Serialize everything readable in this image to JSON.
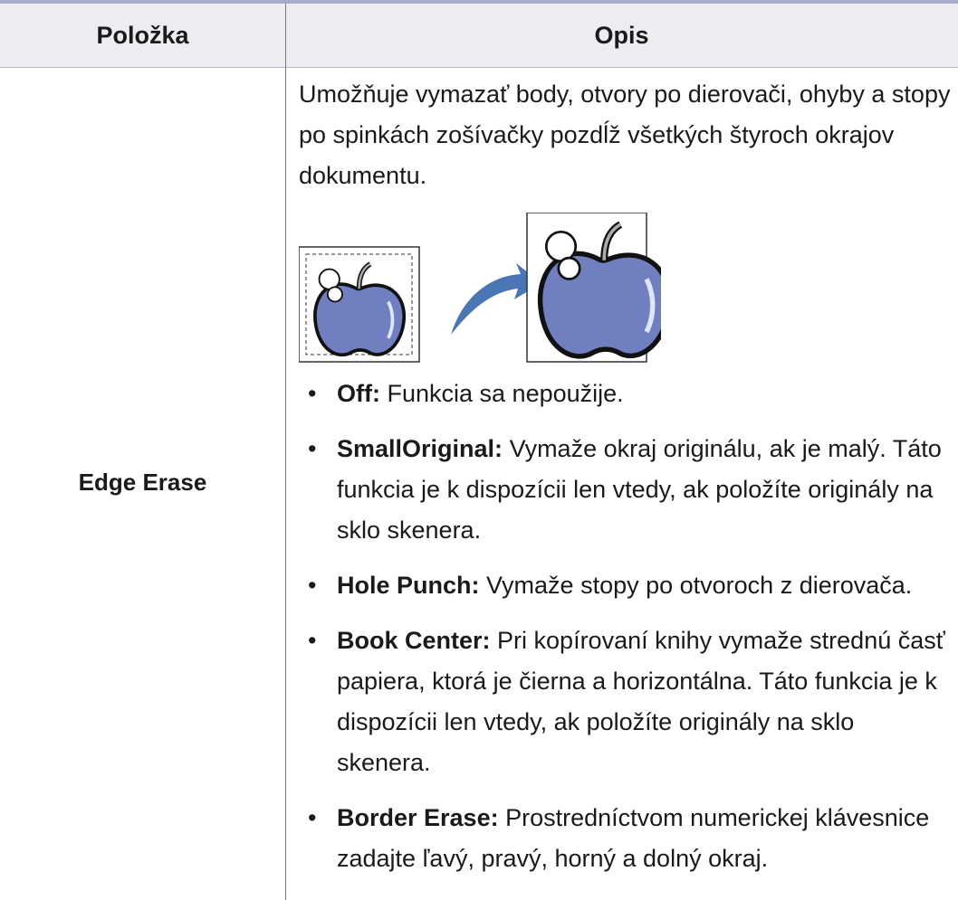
{
  "table": {
    "headers": [
      "Položka",
      "Opis"
    ],
    "rows": [
      {
        "item": "Edge Erase",
        "description": "Umožňuje vymazať body, otvory po dierovači, ohyby a stopy po spinkách zošívačky pozdĺž všetkých štyroch okrajov dokumentu.",
        "options": [
          {
            "term": "Off:",
            "text": "Funkcia sa nepoužije."
          },
          {
            "term": "SmallOriginal:",
            "text": "Vymaže okraj originálu, ak je malý. Táto funkcia je k dispozícii len vtedy, ak položíte originály na sklo skenera."
          },
          {
            "term": "Hole Punch:",
            "text": "Vymaže stopy po otvoroch z dierovača."
          },
          {
            "term": "Book Center:",
            "text": "Pri kopírovaní knihy vymaže strednú časť papiera, ktorá je čierna a horizontálna. Táto funkcia je k dispozícii len vtedy, ak položíte originály na sklo skenera."
          },
          {
            "term": "Border Erase:",
            "text": "Prostredníctvom numerickej klávesnice zadajte ľavý, pravý, horný a dolný okraj."
          }
        ]
      }
    ]
  }
}
